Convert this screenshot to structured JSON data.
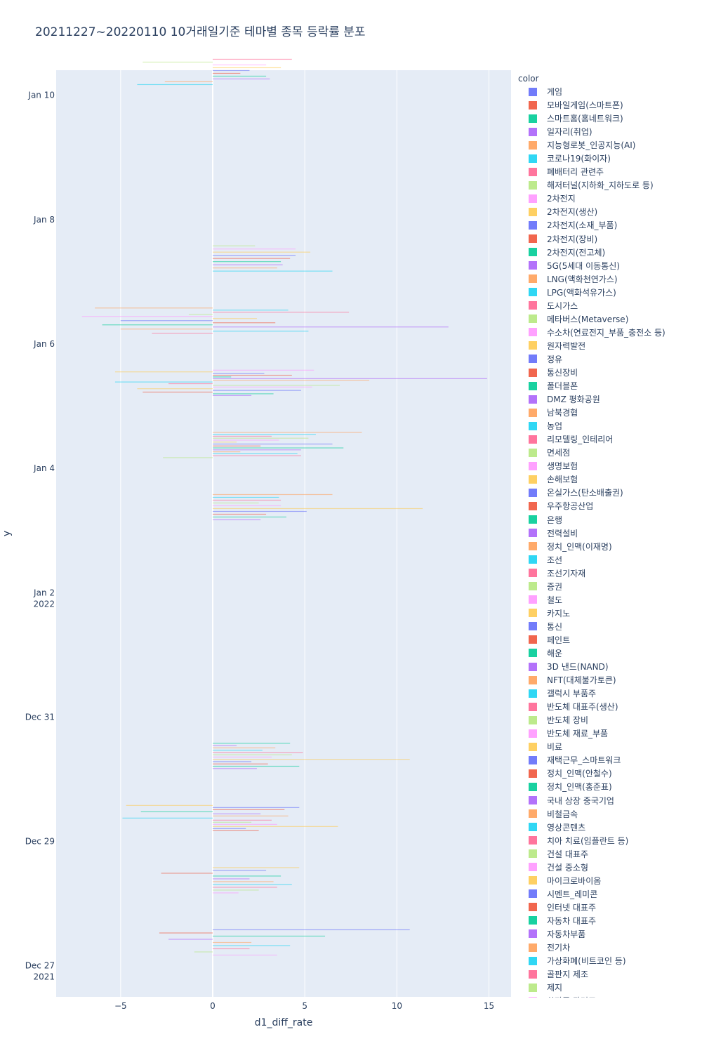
{
  "title": "20211227~20220110 10거래일기준 테마별 종목 등락률 분포",
  "chart_data": {
    "type": "bar",
    "orientation": "horizontal",
    "title": "20211227~20220110 10거래일기준 테마별 종목 등락률 분포",
    "xlabel": "d1_diff_rate",
    "ylabel": "y",
    "xlim": [
      -8.5,
      16.2
    ],
    "ylim": [
      "2021-12-26 12:00",
      "2022-01-10 09:40"
    ],
    "x_ticks": [
      -5,
      0,
      5,
      10,
      15
    ],
    "x_tick_labels": [
      "−5",
      "0",
      "5",
      "10",
      "15"
    ],
    "y_ticks": [
      {
        "date": "2021-12-27",
        "label": "Dec 27",
        "sublabel": "2021"
      },
      {
        "date": "2021-12-29",
        "label": "Dec 29",
        "sublabel": ""
      },
      {
        "date": "2021-12-31",
        "label": "Dec 31",
        "sublabel": ""
      },
      {
        "date": "2022-01-02",
        "label": "Jan 2",
        "sublabel": "2022"
      },
      {
        "date": "2022-01-04",
        "label": "Jan 4",
        "sublabel": ""
      },
      {
        "date": "2022-01-06",
        "label": "Jan 6",
        "sublabel": ""
      },
      {
        "date": "2022-01-08",
        "label": "Jan 8",
        "sublabel": ""
      },
      {
        "date": "2022-01-10",
        "label": "Jan 10",
        "sublabel": ""
      }
    ],
    "grid": true,
    "legend_title": "color",
    "legend_position": "right",
    "palette": [
      "#636efa",
      "#EF553B",
      "#00cc96",
      "#ab63fa",
      "#FFA15A",
      "#19d3f3",
      "#FF6692",
      "#B6E880",
      "#FF97FF",
      "#FECB52"
    ],
    "series_names": [
      "게임",
      "모바일게임(스마트폰)",
      "스마트홈(홈네트워크)",
      "일자리(취업)",
      "지능형로봇_인공지능(AI)",
      "코로나19(화이자)",
      "폐배터리 관련주",
      "해저터널(지하화_지하도로 등)",
      "2차전지",
      "2차전지(생산)",
      "2차전지(소재_부품)",
      "2차전지(장비)",
      "2차전지(전고체)",
      "5G(5세대 이동통신)",
      "LNG(액화천연가스)",
      "LPG(액화석유가스)",
      "도시가스",
      "메타버스(Metaverse)",
      "수소차(연료전지_부품_충전소 등)",
      "원자력발전",
      "정유",
      "통신장비",
      "폴더블폰",
      "DMZ 평화공원",
      "남북경협",
      "농업",
      "리모델링_인테리어",
      "면세점",
      "생명보험",
      "손해보험",
      "온실가스(탄소배출권)",
      "우주항공산업",
      "은행",
      "전력설비",
      "정치_인맥(이재명)",
      "조선",
      "조선기자재",
      "증권",
      "철도",
      "카지노",
      "통신",
      "페인트",
      "해운",
      "3D 낸드(NAND)",
      "NFT(대체불가토큰)",
      "갤럭시 부품주",
      "반도체 대표주(생산)",
      "반도체 장비",
      "반도체 재료_부품",
      "비료",
      "재택근무_스마트워크",
      "정치_인맥(안철수)",
      "정치_인맥(홍준표)",
      "국내 상장 중국기업",
      "비철금속",
      "영상콘텐츠",
      "치아 치료(임플란트 등)",
      "건설 대표주",
      "건설 중소형",
      "마이크로바이옴",
      "시멘트_레미콘",
      "인터넷 대표주",
      "자동차 대표주",
      "자동차부품",
      "전기차",
      "가상화폐(비트코인 등)",
      "골판지 제조",
      "제지",
      "화장품 관련주"
    ],
    "legend_items": [
      {
        "name": "게임",
        "color": "#636efa"
      },
      {
        "name": "모바일게임(스마트폰)",
        "color": "#EF553B"
      },
      {
        "name": "스마트홈(홈네트워크)",
        "color": "#00cc96"
      },
      {
        "name": "일자리(취업)",
        "color": "#ab63fa"
      },
      {
        "name": "지능형로봇_인공지능(AI)",
        "color": "#FFA15A"
      },
      {
        "name": "코로나19(화이자)",
        "color": "#19d3f3"
      },
      {
        "name": "폐배터리 관련주",
        "color": "#FF6692"
      },
      {
        "name": "해저터널(지하화_지하도로 등)",
        "color": "#B6E880"
      },
      {
        "name": "2차전지",
        "color": "#FF97FF"
      },
      {
        "name": "2차전지(생산)",
        "color": "#FECB52"
      },
      {
        "name": "2차전지(소재_부품)",
        "color": "#636efa"
      },
      {
        "name": "2차전지(장비)",
        "color": "#EF553B"
      },
      {
        "name": "2차전지(전고체)",
        "color": "#00cc96"
      },
      {
        "name": "5G(5세대 이동통신)",
        "color": "#ab63fa"
      },
      {
        "name": "LNG(액화천연가스)",
        "color": "#FFA15A"
      },
      {
        "name": "LPG(액화석유가스)",
        "color": "#19d3f3"
      },
      {
        "name": "도시가스",
        "color": "#FF6692"
      },
      {
        "name": "메타버스(Metaverse)",
        "color": "#B6E880"
      },
      {
        "name": "수소차(연료전지_부품_충전소 등)",
        "color": "#FF97FF"
      },
      {
        "name": "원자력발전",
        "color": "#FECB52"
      },
      {
        "name": "정유",
        "color": "#636efa"
      },
      {
        "name": "통신장비",
        "color": "#EF553B"
      },
      {
        "name": "폴더블폰",
        "color": "#00cc96"
      },
      {
        "name": "DMZ 평화공원",
        "color": "#ab63fa"
      },
      {
        "name": "남북경협",
        "color": "#FFA15A"
      },
      {
        "name": "농업",
        "color": "#19d3f3"
      },
      {
        "name": "리모델링_인테리어",
        "color": "#FF6692"
      },
      {
        "name": "면세점",
        "color": "#B6E880"
      },
      {
        "name": "생명보험",
        "color": "#FF97FF"
      },
      {
        "name": "손해보험",
        "color": "#FECB52"
      },
      {
        "name": "온실가스(탄소배출권)",
        "color": "#636efa"
      },
      {
        "name": "우주항공산업",
        "color": "#EF553B"
      },
      {
        "name": "은행",
        "color": "#00cc96"
      },
      {
        "name": "전력설비",
        "color": "#ab63fa"
      },
      {
        "name": "정치_인맥(이재명)",
        "color": "#FFA15A"
      },
      {
        "name": "조선",
        "color": "#19d3f3"
      },
      {
        "name": "조선기자재",
        "color": "#FF6692"
      },
      {
        "name": "증권",
        "color": "#B6E880"
      },
      {
        "name": "철도",
        "color": "#FF97FF"
      },
      {
        "name": "카지노",
        "color": "#FECB52"
      },
      {
        "name": "통신",
        "color": "#636efa"
      },
      {
        "name": "페인트",
        "color": "#EF553B"
      },
      {
        "name": "해운",
        "color": "#00cc96"
      },
      {
        "name": "3D 낸드(NAND)",
        "color": "#ab63fa"
      },
      {
        "name": "NFT(대체불가토큰)",
        "color": "#FFA15A"
      },
      {
        "name": "갤럭시 부품주",
        "color": "#19d3f3"
      },
      {
        "name": "반도체 대표주(생산)",
        "color": "#FF6692"
      },
      {
        "name": "반도체 장비",
        "color": "#B6E880"
      },
      {
        "name": "반도체 재료_부품",
        "color": "#FF97FF"
      },
      {
        "name": "비료",
        "color": "#FECB52"
      },
      {
        "name": "재택근무_스마트워크",
        "color": "#636efa"
      },
      {
        "name": "정치_인맥(안철수)",
        "color": "#EF553B"
      },
      {
        "name": "정치_인맥(홍준표)",
        "color": "#00cc96"
      },
      {
        "name": "국내 상장 중국기업",
        "color": "#ab63fa"
      },
      {
        "name": "비철금속",
        "color": "#FFA15A"
      },
      {
        "name": "영상콘텐츠",
        "color": "#19d3f3"
      },
      {
        "name": "치아 치료(임플란트 등)",
        "color": "#FF6692"
      },
      {
        "name": "건설 대표주",
        "color": "#B6E880"
      },
      {
        "name": "건설 중소형",
        "color": "#FF97FF"
      },
      {
        "name": "마이크로바이옴",
        "color": "#FECB52"
      },
      {
        "name": "시멘트_레미콘",
        "color": "#636efa"
      },
      {
        "name": "인터넷 대표주",
        "color": "#EF553B"
      },
      {
        "name": "자동차 대표주",
        "color": "#00cc96"
      },
      {
        "name": "자동차부품",
        "color": "#ab63fa"
      },
      {
        "name": "전기차",
        "color": "#FFA15A"
      },
      {
        "name": "가상화폐(비트코인 등)",
        "color": "#19d3f3"
      },
      {
        "name": "골판지 제조",
        "color": "#FF6692"
      },
      {
        "name": "제지",
        "color": "#B6E880"
      },
      {
        "name": "화장품 관련주",
        "color": "#FF97FF"
      }
    ],
    "day_clusters": [
      {
        "date": "2021-12-27 09:00",
        "values": [
          10.7,
          -2.9,
          6.1,
          -2.4,
          2.1,
          4.2,
          2.0,
          -1.0,
          3.5
        ]
      },
      {
        "date": "2021-12-28 09:00",
        "values": [
          4.7,
          2.9,
          -2.8,
          3.7,
          2.0,
          3.3,
          4.3,
          3.5,
          2.5,
          1.4
        ]
      },
      {
        "date": "2021-12-29 09:00",
        "values": [
          -4.7,
          4.7,
          3.9,
          -3.9,
          2.6,
          4.1,
          -4.9,
          3.2,
          2.1,
          3.5,
          6.8,
          1.8,
          2.5
        ]
      },
      {
        "date": "2021-12-30 09:00",
        "values": [
          4.2,
          1.3,
          3.4,
          2.7,
          4.9,
          4.3,
          3.2,
          10.7,
          2.1,
          3.0,
          4.7,
          2.4
        ]
      },
      {
        "date": "2022-01-03 09:00",
        "values": [
          6.5,
          3.6,
          3.7,
          2.5,
          3.7,
          11.4,
          5.1,
          2.9,
          4.0,
          2.6
        ]
      },
      {
        "date": "2022-01-04 09:00",
        "values": [
          8.1,
          5.6,
          3.2,
          5.2,
          3.6,
          1.3,
          6.5,
          2.6,
          7.1,
          4.8,
          1.5,
          4.6,
          4.8,
          -2.7
        ]
      },
      {
        "date": "2022-01-05 09:00",
        "values": [
          5.5,
          -5.3,
          2.8,
          4.3,
          1.0,
          14.9,
          8.5,
          -5.3,
          -2.4,
          6.9,
          5.4,
          -4.1,
          4.8,
          -3.8,
          3.3,
          2.1
        ]
      },
      {
        "date": "2022-01-06 09:00",
        "values": [
          -6.4,
          4.1,
          7.4,
          -1.3,
          -7.1,
          2.4,
          -5.0,
          3.4,
          -6.0,
          12.8,
          -5.0,
          5.2,
          -3.3
        ]
      },
      {
        "date": "2022-01-07 09:00",
        "values": [
          2.3,
          4.5,
          5.3,
          4.5,
          4.2,
          3.7,
          3.8,
          3.5,
          6.5
        ]
      },
      {
        "date": "2022-01-10 09:00",
        "values": [
          4.3,
          -3.8,
          2.9,
          3.7,
          2.0,
          1.5,
          2.9,
          3.1,
          -2.6,
          -4.1
        ]
      }
    ]
  }
}
